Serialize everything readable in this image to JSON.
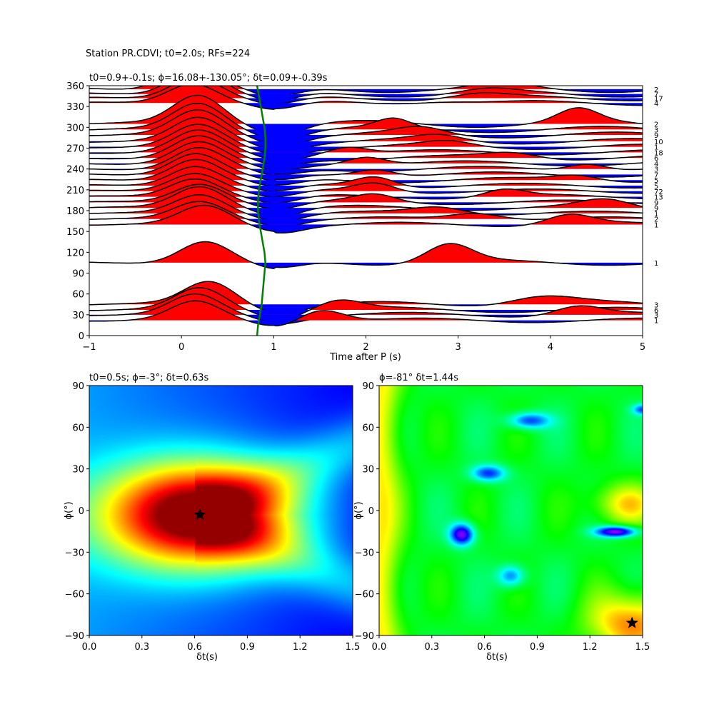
{
  "figure": {
    "suptitle": "Station PR.CDVI; t0=2.0s; RFs=224"
  },
  "chart_data": [
    {
      "type": "line",
      "panel": "receiver-function-wiggles",
      "title": "t0=0.9+-0.1s; ϕ=16.08+-130.05°; δt=0.09+-0.39s",
      "xlabel": "Time after P (s)",
      "ylabel": "",
      "xlim": [
        -1,
        5
      ],
      "ylim": [
        0,
        360
      ],
      "xticks": [
        "−1",
        "0",
        "1",
        "2",
        "3",
        "4",
        "5"
      ],
      "xtick_values": [
        -1,
        0,
        1,
        2,
        3,
        4,
        5
      ],
      "yticks": [
        "0",
        "30",
        "60",
        "90",
        "120",
        "150",
        "180",
        "210",
        "240",
        "270",
        "300",
        "330",
        "360"
      ],
      "ytick_values": [
        0,
        30,
        60,
        90,
        120,
        150,
        180,
        210,
        240,
        270,
        300,
        330,
        360
      ],
      "positive_fill": "#ff0000",
      "negative_fill": "#0000ff",
      "trace_color": "#000000",
      "curve_color": "#008000",
      "traces": [
        {
          "baz": 355,
          "count": "2",
          "peak_t": 0.1,
          "amp": 38,
          "sec": [
            3.5,
            6,
            0.35
          ]
        },
        {
          "baz": 348,
          "count": "7",
          "peak_t": 0.15,
          "amp": 35,
          "sec": [
            3.3,
            5,
            0.4
          ]
        },
        {
          "baz": 342,
          "count": "17",
          "peak_t": 0.15,
          "amp": 30,
          "sec": [
            3.2,
            6,
            0.4
          ]
        },
        {
          "baz": 335,
          "count": "4",
          "peak_t": 0.12,
          "amp": 28,
          "sec": [
            2.8,
            4,
            0.45
          ]
        },
        {
          "baz": 305,
          "count": "2",
          "peak_t": 0.18,
          "amp": 40,
          "sec": [
            4.3,
            18,
            0.3
          ]
        },
        {
          "baz": 297,
          "count": "3",
          "peak_t": 0.18,
          "amp": 36,
          "sec": [
            2.3,
            12,
            0.25
          ]
        },
        {
          "baz": 289,
          "count": "9",
          "peak_t": 0.18,
          "amp": 34,
          "sec": [
            2.6,
            9,
            0.35
          ]
        },
        {
          "baz": 280,
          "count": "10",
          "peak_t": 0.18,
          "amp": 32,
          "sec": [
            2.8,
            7,
            0.35
          ]
        },
        {
          "baz": 272,
          "count": "1",
          "peak_t": 0.18,
          "amp": 30,
          "sec": [
            2.9,
            6,
            0.35
          ]
        },
        {
          "baz": 264,
          "count": "18",
          "peak_t": 0.18,
          "amp": 30,
          "sec": [
            1.8,
            10,
            0.3
          ]
        },
        {
          "baz": 256,
          "count": "6",
          "peak_t": 0.18,
          "amp": 30,
          "sec": [
            3.6,
            8,
            0.4
          ]
        },
        {
          "baz": 248,
          "count": "4",
          "peak_t": 0.18,
          "amp": 30,
          "sec": [
            2.0,
            12,
            0.3
          ]
        },
        {
          "baz": 240,
          "count": "3",
          "peak_t": 0.18,
          "amp": 30,
          "sec": [
            4.4,
            10,
            0.3
          ]
        },
        {
          "baz": 232,
          "count": "7",
          "peak_t": 0.15,
          "amp": 30,
          "sec": [
            2.1,
            10,
            0.3
          ]
        },
        {
          "baz": 224,
          "count": "5",
          "peak_t": 0.15,
          "amp": 30,
          "sec": [
            4.3,
            8,
            0.35
          ]
        },
        {
          "baz": 216,
          "count": "5",
          "peak_t": 0.15,
          "amp": 28,
          "sec": [
            2.1,
            14,
            0.3
          ]
        },
        {
          "baz": 208,
          "count": "72",
          "peak_t": 0.15,
          "amp": 26,
          "sec": [
            2.1,
            12,
            0.3
          ]
        },
        {
          "baz": 200,
          "count": "13",
          "peak_t": 0.15,
          "amp": 26,
          "sec": [
            3.5,
            10,
            0.3
          ]
        },
        {
          "baz": 192,
          "count": "9",
          "peak_t": 0.2,
          "amp": 26,
          "sec": [
            2.1,
            10,
            0.3
          ]
        },
        {
          "baz": 184,
          "count": "9",
          "peak_t": 0.2,
          "amp": 30,
          "sec": [
            4.6,
            10,
            0.35
          ]
        },
        {
          "baz": 176,
          "count": "1",
          "peak_t": 0.2,
          "amp": 26,
          "sec": [
            2.8,
            10,
            0.4
          ]
        },
        {
          "baz": 168,
          "count": "2",
          "peak_t": 0.2,
          "amp": 24,
          "sec": [
            3.2,
            10,
            0.4
          ]
        },
        {
          "baz": 160,
          "count": "1",
          "peak_t": 0.25,
          "amp": 26,
          "sec": [
            4.2,
            14,
            0.35
          ]
        },
        {
          "baz": 105,
          "count": "1",
          "peak_t": 0.25,
          "amp": 30,
          "sec": [
            2.9,
            26,
            0.35
          ]
        },
        {
          "baz": 45,
          "count": "3",
          "peak_t": 0.3,
          "amp": 32,
          "sec": [
            3.9,
            12,
            0.5
          ]
        },
        {
          "baz": 37,
          "count": "6",
          "peak_t": 0.2,
          "amp": 30,
          "sec": [
            1.7,
            14,
            0.35
          ]
        },
        {
          "baz": 30,
          "count": "3",
          "peak_t": 0.15,
          "amp": 28,
          "sec": [
            4.3,
            12,
            0.35
          ]
        },
        {
          "baz": 22,
          "count": "1",
          "peak_t": 0.15,
          "amp": 26,
          "sec": [
            1.5,
            18,
            0.35
          ]
        }
      ],
      "moveout_curve": {
        "baz": [
          0,
          15,
          30,
          45,
          60,
          75,
          90,
          105,
          120,
          135,
          150,
          165,
          180,
          195,
          210,
          225,
          240,
          255,
          270,
          285,
          300,
          315,
          330,
          345,
          360
        ],
        "t": [
          0.82,
          0.83,
          0.85,
          0.87,
          0.88,
          0.89,
          0.9,
          0.91,
          0.9,
          0.88,
          0.86,
          0.84,
          0.83,
          0.83,
          0.84,
          0.86,
          0.88,
          0.9,
          0.91,
          0.91,
          0.9,
          0.88,
          0.86,
          0.84,
          0.82
        ]
      }
    },
    {
      "type": "heatmap",
      "panel": "energy-grid-left",
      "title": "t0=0.5s; ϕ=-3°; δt=0.63s",
      "xlabel": "δt(s)",
      "ylabel": "ϕ(°)",
      "xlim": [
        0,
        1.5
      ],
      "ylim": [
        -90,
        90
      ],
      "xticks": [
        "0.0",
        "0.3",
        "0.6",
        "0.9",
        "1.2",
        "1.5"
      ],
      "xtick_values": [
        0,
        0.3,
        0.6,
        0.9,
        1.2,
        1.5
      ],
      "yticks": [
        "−90",
        "−60",
        "−30",
        "0",
        "30",
        "60",
        "90"
      ],
      "ytick_values": [
        -90,
        -60,
        -30,
        0,
        30,
        60,
        90
      ],
      "colormap": "jet",
      "best": {
        "dt": 0.63,
        "phi": -3
      },
      "marker": "star"
    },
    {
      "type": "heatmap",
      "panel": "energy-grid-right",
      "title": "ϕ=-81° δt=1.44s",
      "xlabel": "δt(s)",
      "ylabel": "ϕ(°)",
      "xlim": [
        0,
        1.5
      ],
      "ylim": [
        -90,
        90
      ],
      "xticks": [
        "0.0",
        "0.3",
        "0.6",
        "0.9",
        "1.2",
        "1.5"
      ],
      "xtick_values": [
        0,
        0.3,
        0.6,
        0.9,
        1.2,
        1.5
      ],
      "yticks": [
        "−90",
        "−60",
        "−30",
        "0",
        "30",
        "60",
        "90"
      ],
      "ytick_values": [
        -90,
        -60,
        -30,
        0,
        30,
        60,
        90
      ],
      "colormap": "hsv",
      "best": {
        "dt": 1.44,
        "phi": -81
      },
      "marker": "star"
    }
  ]
}
